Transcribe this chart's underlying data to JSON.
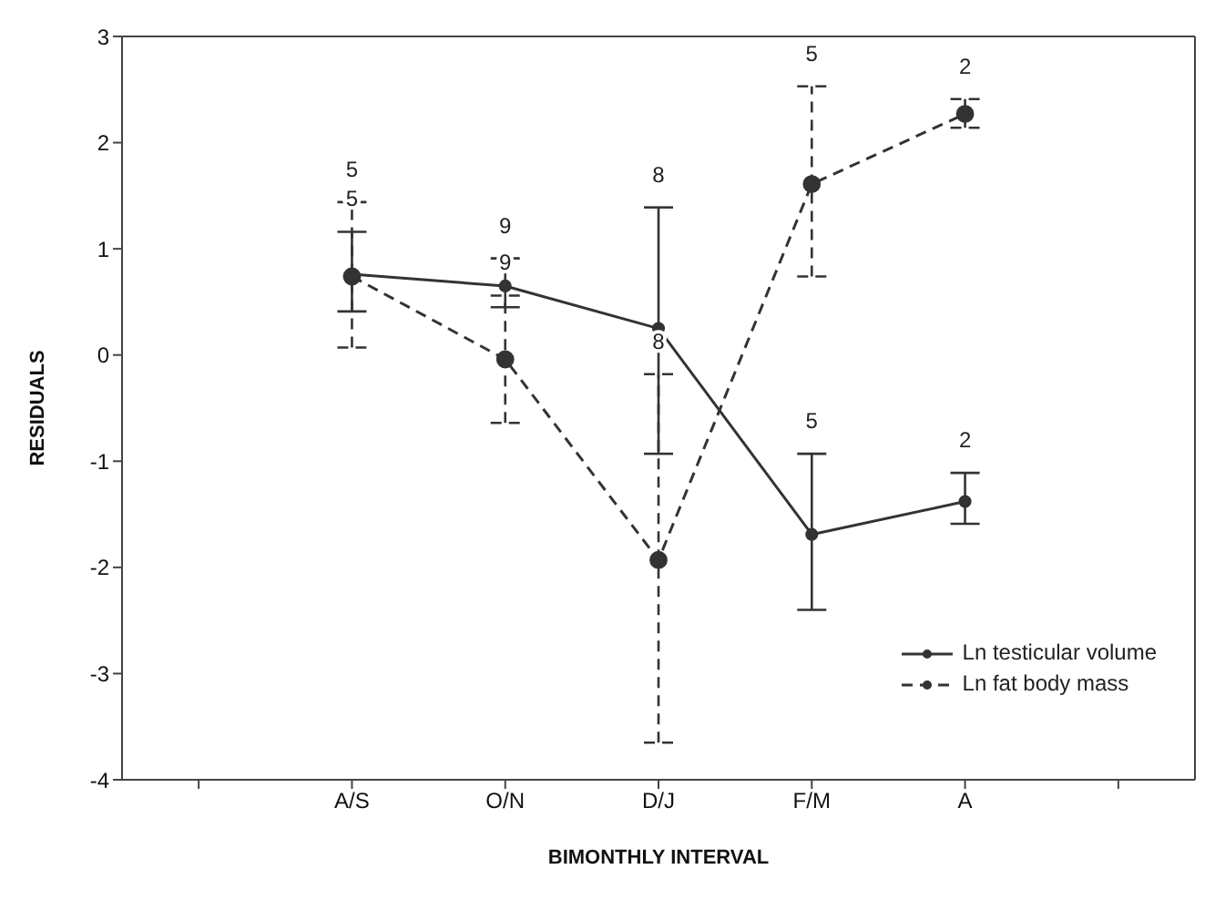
{
  "chart_data": {
    "type": "line",
    "xlabel": "BIMONTHLY INTERVAL",
    "ylabel": "RESIDUALS",
    "categories": [
      null,
      "A/S",
      "O/N",
      "D/J",
      "F/M",
      "A",
      null
    ],
    "ylim": [
      -4,
      3
    ],
    "yticks": [
      -4,
      -3,
      -2,
      -1,
      0,
      1,
      2,
      3
    ],
    "grid": false,
    "legend": "bottom right",
    "marker": "circle",
    "series": [
      {
        "name": "Ln testicular volume",
        "color": "#333333",
        "line_style": "solid",
        "values": [
          null,
          0.76,
          0.65,
          0.25,
          -1.69,
          -1.38,
          null
        ],
        "errors": [
          null,
          [
            0.41,
            1.16
          ],
          [
            0.45,
            0.91
          ],
          [
            -0.93,
            1.39
          ],
          [
            -2.4,
            -0.93
          ],
          [
            -1.59,
            -1.11
          ],
          null
        ]
      },
      {
        "name": "Ln fat body mass",
        "color": "#333333",
        "line_style": "dashed",
        "values": [
          null,
          0.74,
          -0.04,
          -1.93,
          1.61,
          2.27,
          null
        ],
        "errors": [
          null,
          [
            0.07,
            1.44
          ],
          [
            -0.64,
            0.56
          ],
          [
            -3.65,
            -0.18
          ],
          [
            0.74,
            2.53
          ],
          [
            2.14,
            2.41
          ],
          null
        ]
      }
    ],
    "annotations": [
      {
        "text": "5",
        "x": "A/S",
        "y": 1.16
      },
      {
        "text": "5",
        "x": "A/S",
        "y": 1.44
      },
      {
        "text": "9",
        "x": "O/N",
        "y": 0.91
      },
      {
        "text": "9",
        "x": "O/N",
        "y": 0.56
      },
      {
        "text": "8",
        "x": "D/J",
        "y": 1.39
      },
      {
        "text": "8",
        "x": "D/J",
        "y": -0.18
      },
      {
        "text": "5",
        "x": "F/M",
        "y": -0.93
      },
      {
        "text": "5",
        "x": "F/M",
        "y": 2.53
      },
      {
        "text": "2",
        "x": "A",
        "y": -1.11
      },
      {
        "text": "2",
        "x": "A",
        "y": 2.41
      }
    ]
  }
}
